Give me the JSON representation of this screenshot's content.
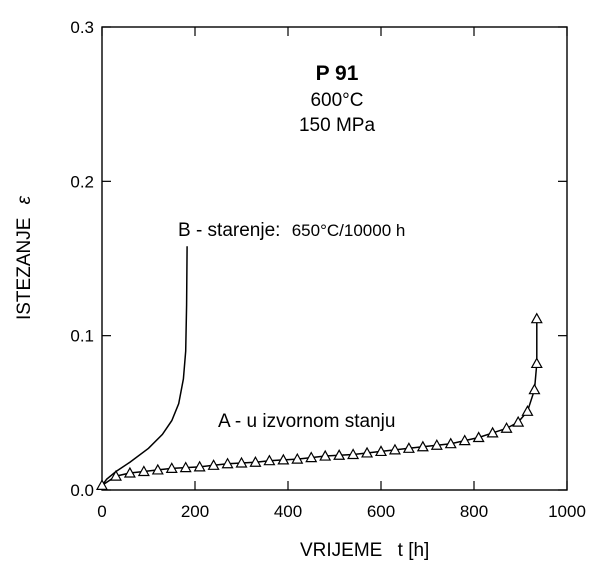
{
  "chart_data": {
    "type": "line",
    "title": "P 91",
    "subtitle_lines": [
      "600°C",
      "150 MPa"
    ],
    "xlabel_main": "VRIJEME",
    "xlabel_var": "t [h]",
    "ylabel_main": "ISTEZANJE",
    "ylabel_var": "ε",
    "xlim": [
      0,
      1000
    ],
    "ylim": [
      0,
      0.3
    ],
    "x_ticks": [
      0,
      200,
      400,
      600,
      800,
      1000
    ],
    "y_ticks": [
      0.0,
      0.1,
      0.2,
      0.3
    ],
    "x_tick_labels": [
      "0",
      "200",
      "400",
      "600",
      "800",
      "1000"
    ],
    "y_tick_labels": [
      "0.0",
      "0.1",
      "0.2",
      "0.3"
    ],
    "grid": false,
    "series": [
      {
        "name": "B - starenje:",
        "label_detail": "650°C/10000 h",
        "marker": "none",
        "x": [
          0,
          10,
          30,
          60,
          100,
          130,
          150,
          165,
          175,
          180,
          182,
          183
        ],
        "y": [
          0.003,
          0.007,
          0.012,
          0.018,
          0.027,
          0.036,
          0.045,
          0.056,
          0.072,
          0.09,
          0.12,
          0.158
        ]
      },
      {
        "name": "A - u izvornom stanju",
        "marker": "triangle",
        "x": [
          0,
          30,
          60,
          90,
          120,
          150,
          180,
          210,
          240,
          270,
          300,
          330,
          360,
          390,
          420,
          450,
          480,
          510,
          540,
          570,
          600,
          630,
          660,
          690,
          720,
          750,
          780,
          810,
          840,
          870,
          895,
          915,
          930,
          935,
          935
        ],
        "y": [
          0.003,
          0.009,
          0.011,
          0.012,
          0.013,
          0.014,
          0.0145,
          0.015,
          0.016,
          0.017,
          0.0175,
          0.018,
          0.019,
          0.0195,
          0.02,
          0.021,
          0.022,
          0.0225,
          0.023,
          0.024,
          0.025,
          0.026,
          0.027,
          0.028,
          0.029,
          0.03,
          0.032,
          0.034,
          0.037,
          0.04,
          0.044,
          0.051,
          0.065,
          0.082,
          0.111
        ]
      }
    ]
  }
}
